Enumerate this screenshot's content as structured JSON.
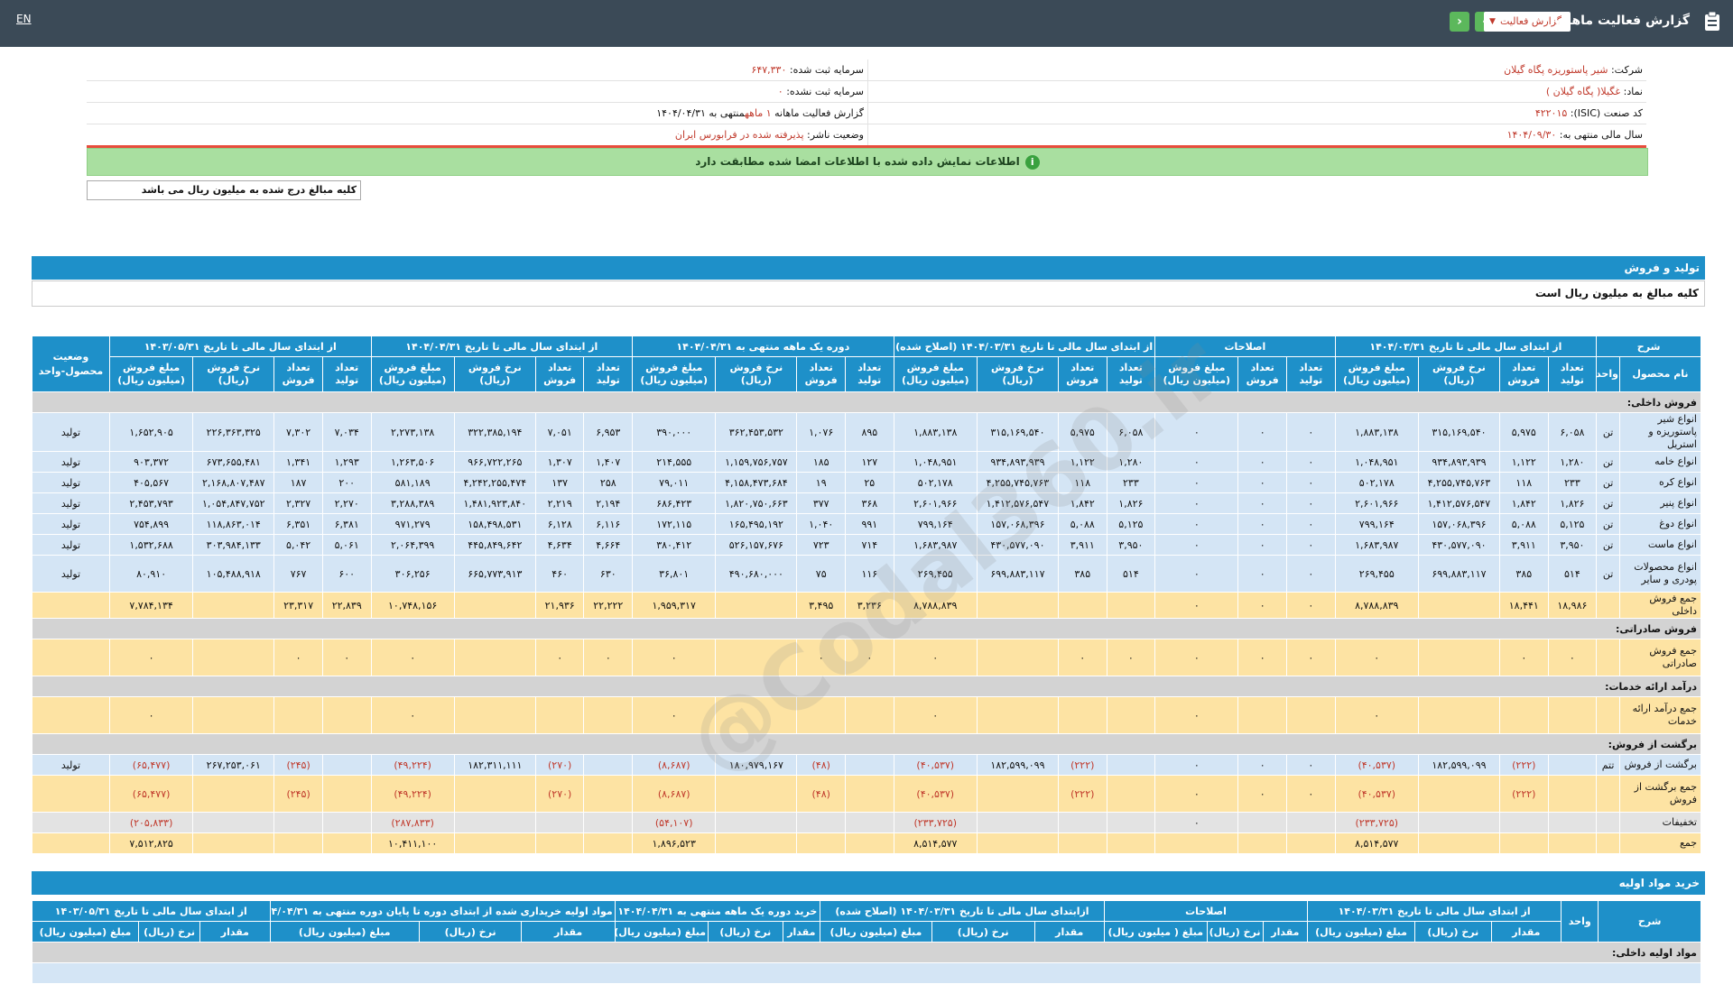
{
  "topbar": {
    "title": "گزارش فعالیت ماهانه",
    "lang": "EN",
    "select_value": "گزارش فعالیت"
  },
  "info": {
    "company_label": "شرکت:",
    "company": "شیر پاستوریزه پگاه گیلان",
    "capital_reg_label": "سرمایه ثبت شده:",
    "capital_reg": "۶۴۷,۳۳۰",
    "symbol_label": "نماد:",
    "symbol": "غگیلا( پگاه گیلان )",
    "capital_unreg_label": "سرمایه ثبت نشده:",
    "capital_unreg": "۰",
    "isic_label": "کد صنعت (ISIC):",
    "isic": "۴۲۲۰۱۵",
    "report_label": "گزارش فعالیت ماهانه",
    "report_value": "۱ ماهه",
    "report_suffix": "منتهی به ۱۴۰۴/۰۴/۳۱",
    "fy_label": "سال مالی منتهی به:",
    "fy": "۱۴۰۴/۰۹/۳۰",
    "status_label": "وضعیت ناشر:",
    "status": "پذیرفته شده در فرابورس ایران"
  },
  "green_msg": "اطلاعات نمایش داده شده با اطلاعات امضا شده مطابقت دارد",
  "note": "کلیه مبالغ درج شده به میلیون ریال می باشد",
  "watermark": "@Codal360.ir",
  "section1": {
    "title": "تولید و فروش",
    "subtitle": "کلیه مبالغ به میلیون ریال است",
    "groups": [
      "شرح",
      "از ابتدای سال مالی تا تاریخ ۱۴۰۴/۰۳/۳۱",
      "اصلاحات",
      "از ابتدای سال مالی تا تاریخ ۱۴۰۴/۰۳/۳۱ (اصلاح شده)",
      "دوره یک ماهه منتهی به ۱۴۰۴/۰۴/۳۱",
      "از ابتدای سال مالی تا تاریخ ۱۴۰۴/۰۴/۳۱",
      "از ابتدای سال مالی تا تاریخ ۱۴۰۳/۰۵/۳۱",
      "وضعیت محصول-واحد"
    ],
    "cols": [
      "نام محصول",
      "واحد",
      "تعداد تولید",
      "تعداد فروش",
      "نرخ فروش (ریال)",
      "مبلغ فروش (میلیون ریال)",
      "تعداد تولید",
      "تعداد فروش",
      "مبلغ فروش (میلیون ریال)",
      "تعداد تولید",
      "تعداد فروش",
      "نرخ فروش (ریال)",
      "مبلغ فروش (میلیون ریال)",
      "تعداد تولید",
      "تعداد فروش",
      "نرخ فروش (ریال)",
      "مبلغ فروش (میلیون ریال)",
      "تعداد تولید",
      "تعداد فروش",
      "نرخ فروش (ریال)",
      "مبلغ فروش (میلیون ریال)",
      "تعداد تولید",
      "تعداد فروش",
      "نرخ فروش (ریال)",
      "مبلغ فروش (میلیون ریال)"
    ],
    "rows": [
      {
        "type": "hdr",
        "cells": [
          "فروش داخلی:"
        ]
      },
      {
        "type": "blue",
        "cells": [
          "انواع شیر پاستوریزه و استریل",
          "تن",
          "۶,۰۵۸",
          "۵,۹۷۵",
          "۳۱۵,۱۶۹,۵۴۰",
          "۱,۸۸۳,۱۳۸",
          "۰",
          "۰",
          "۰",
          "۶,۰۵۸",
          "۵,۹۷۵",
          "۳۱۵,۱۶۹,۵۴۰",
          "۱,۸۸۳,۱۳۸",
          "۸۹۵",
          "۱,۰۷۶",
          "۳۶۲,۴۵۳,۵۳۲",
          "۳۹۰,۰۰۰",
          "۶,۹۵۳",
          "۷,۰۵۱",
          "۳۲۲,۳۸۵,۱۹۴",
          "۲,۲۷۳,۱۳۸",
          "۷,۰۳۴",
          "۷,۳۰۲",
          "۲۲۶,۳۶۳,۳۲۵",
          "۱,۶۵۲,۹۰۵",
          "تولید"
        ]
      },
      {
        "type": "blue",
        "cells": [
          "انواع خامه",
          "تن",
          "۱,۲۸۰",
          "۱,۱۲۲",
          "۹۳۴,۸۹۳,۹۳۹",
          "۱,۰۴۸,۹۵۱",
          "۰",
          "۰",
          "۰",
          "۱,۲۸۰",
          "۱,۱۲۲",
          "۹۳۴,۸۹۳,۹۳۹",
          "۱,۰۴۸,۹۵۱",
          "۱۲۷",
          "۱۸۵",
          "۱,۱۵۹,۷۵۶,۷۵۷",
          "۲۱۴,۵۵۵",
          "۱,۴۰۷",
          "۱,۳۰۷",
          "۹۶۶,۷۲۲,۲۶۵",
          "۱,۲۶۳,۵۰۶",
          "۱,۲۹۳",
          "۱,۳۴۱",
          "۶۷۳,۶۵۵,۴۸۱",
          "۹۰۳,۳۷۲",
          "تولید"
        ]
      },
      {
        "type": "blue",
        "cells": [
          "انواع کره",
          "تن",
          "۲۳۳",
          "۱۱۸",
          "۴,۲۵۵,۷۴۵,۷۶۳",
          "۵۰۲,۱۷۸",
          "۰",
          "۰",
          "۰",
          "۲۳۳",
          "۱۱۸",
          "۴,۲۵۵,۷۴۵,۷۶۳",
          "۵۰۲,۱۷۸",
          "۲۵",
          "۱۹",
          "۴,۱۵۸,۴۷۳,۶۸۴",
          "۷۹,۰۱۱",
          "۲۵۸",
          "۱۳۷",
          "۴,۲۴۲,۲۵۵,۴۷۴",
          "۵۸۱,۱۸۹",
          "۲۰۰",
          "۱۸۷",
          "۲,۱۶۸,۸۰۷,۴۸۷",
          "۴۰۵,۵۶۷",
          "تولید"
        ]
      },
      {
        "type": "blue",
        "cells": [
          "انواع پنیر",
          "تن",
          "۱,۸۲۶",
          "۱,۸۴۲",
          "۱,۴۱۲,۵۷۶,۵۴۷",
          "۲,۶۰۱,۹۶۶",
          "۰",
          "۰",
          "۰",
          "۱,۸۲۶",
          "۱,۸۴۲",
          "۱,۴۱۲,۵۷۶,۵۴۷",
          "۲,۶۰۱,۹۶۶",
          "۳۶۸",
          "۳۷۷",
          "۱,۸۲۰,۷۵۰,۶۶۳",
          "۶۸۶,۴۲۳",
          "۲,۱۹۴",
          "۲,۲۱۹",
          "۱,۴۸۱,۹۲۳,۸۴۰",
          "۳,۲۸۸,۳۸۹",
          "۲,۲۷۰",
          "۲,۳۲۷",
          "۱,۰۵۴,۸۴۷,۷۵۲",
          "۲,۴۵۳,۷۹۳",
          "تولید"
        ]
      },
      {
        "type": "blue",
        "cells": [
          "انواع دوغ",
          "تن",
          "۵,۱۲۵",
          "۵,۰۸۸",
          "۱۵۷,۰۶۸,۳۹۶",
          "۷۹۹,۱۶۴",
          "۰",
          "۰",
          "۰",
          "۵,۱۲۵",
          "۵,۰۸۸",
          "۱۵۷,۰۶۸,۳۹۶",
          "۷۹۹,۱۶۴",
          "۹۹۱",
          "۱,۰۴۰",
          "۱۶۵,۴۹۵,۱۹۲",
          "۱۷۲,۱۱۵",
          "۶,۱۱۶",
          "۶,۱۲۸",
          "۱۵۸,۴۹۸,۵۳۱",
          "۹۷۱,۲۷۹",
          "۶,۳۸۱",
          "۶,۳۵۱",
          "۱۱۸,۸۶۳,۰۱۴",
          "۷۵۴,۸۹۹",
          "تولید"
        ]
      },
      {
        "type": "blue",
        "cells": [
          "انواع ماست",
          "تن",
          "۳,۹۵۰",
          "۳,۹۱۱",
          "۴۳۰,۵۷۷,۰۹۰",
          "۱,۶۸۳,۹۸۷",
          "۰",
          "۰",
          "۰",
          "۳,۹۵۰",
          "۳,۹۱۱",
          "۴۳۰,۵۷۷,۰۹۰",
          "۱,۶۸۳,۹۸۷",
          "۷۱۴",
          "۷۲۳",
          "۵۲۶,۱۵۷,۶۷۶",
          "۳۸۰,۴۱۲",
          "۴,۶۶۴",
          "۴,۶۳۴",
          "۴۴۵,۸۴۹,۶۴۲",
          "۲,۰۶۴,۳۹۹",
          "۵,۰۶۱",
          "۵,۰۴۲",
          "۳۰۳,۹۸۴,۱۳۳",
          "۱,۵۳۲,۶۸۸",
          "تولید"
        ]
      },
      {
        "type": "blue",
        "cells": [
          "انواع محصولات پودری و سایر",
          "تن",
          "۵۱۴",
          "۳۸۵",
          "۶۹۹,۸۸۳,۱۱۷",
          "۲۶۹,۴۵۵",
          "۰",
          "۰",
          "۰",
          "۵۱۴",
          "۳۸۵",
          "۶۹۹,۸۸۳,۱۱۷",
          "۲۶۹,۴۵۵",
          "۱۱۶",
          "۷۵",
          "۴۹۰,۶۸۰,۰۰۰",
          "۳۶,۸۰۱",
          "۶۳۰",
          "۴۶۰",
          "۶۶۵,۷۷۳,۹۱۳",
          "۳۰۶,۲۵۶",
          "۶۰۰",
          "۷۶۷",
          "۱۰۵,۴۸۸,۹۱۸",
          "۸۰,۹۱۰",
          "تولید"
        ]
      },
      {
        "type": "yel",
        "cells": [
          "جمع فروش داخلی",
          "",
          "۱۸,۹۸۶",
          "۱۸,۴۴۱",
          "",
          "۸,۷۸۸,۸۳۹",
          "۰",
          "۰",
          "۰",
          "",
          "",
          "",
          "۸,۷۸۸,۸۳۹",
          "۳,۲۳۶",
          "۳,۴۹۵",
          "",
          "۱,۹۵۹,۳۱۷",
          "۲۲,۲۲۲",
          "۲۱,۹۳۶",
          "",
          "۱۰,۷۴۸,۱۵۶",
          "۲۲,۸۳۹",
          "۲۳,۳۱۷",
          "",
          "۷,۷۸۴,۱۳۴",
          ""
        ]
      },
      {
        "type": "hdr",
        "cells": [
          "فروش صادراتی:"
        ]
      },
      {
        "type": "yel2",
        "cells": [
          "جمع فروش صادراتی",
          "",
          "۰",
          "۰",
          "",
          "۰",
          "۰",
          "۰",
          "۰",
          "۰",
          "۰",
          "",
          "۰",
          "۰",
          "۰",
          "",
          "۰",
          "۰",
          "۰",
          "",
          "۰",
          "۰",
          "۰",
          "",
          "۰",
          ""
        ]
      },
      {
        "type": "hdr",
        "cells": [
          "درآمد ارائه خدمات:"
        ]
      },
      {
        "type": "yel2",
        "cells": [
          "جمع درآمد ارائه خدمات",
          "",
          "",
          "",
          "",
          "۰",
          "",
          "",
          "۰",
          "",
          "",
          "",
          "۰",
          "",
          "",
          "",
          "۰",
          "",
          "",
          "",
          "۰",
          "",
          "",
          "",
          "۰",
          ""
        ]
      },
      {
        "type": "hdr",
        "cells": [
          "برگشت از فروش:"
        ]
      },
      {
        "type": "blue",
        "cells": [
          "برگشت از فروش",
          "تتم",
          "",
          "(۲۲۲)",
          "۱۸۲,۵۹۹,۰۹۹",
          "(۴۰,۵۳۷)",
          "۰",
          "۰",
          "۰",
          "",
          "(۲۲۲)",
          "۱۸۲,۵۹۹,۰۹۹",
          "(۴۰,۵۳۷)",
          "",
          "(۴۸)",
          "۱۸۰,۹۷۹,۱۶۷",
          "(۸,۶۸۷)",
          "",
          "(۲۷۰)",
          "۱۸۲,۳۱۱,۱۱۱",
          "(۴۹,۲۲۴)",
          "",
          "(۲۴۵)",
          "۲۶۷,۲۵۳,۰۶۱",
          "(۶۵,۴۷۷)",
          "تولید"
        ]
      },
      {
        "type": "yel2",
        "cells": [
          "جمع برگشت از فروش",
          "",
          "",
          "(۲۲۲)",
          "",
          "(۴۰,۵۳۷)",
          "۰",
          "۰",
          "۰",
          "",
          "(۲۲۲)",
          "",
          "(۴۰,۵۳۷)",
          "",
          "(۴۸)",
          "",
          "(۸,۶۸۷)",
          "",
          "(۲۷۰)",
          "",
          "(۴۹,۲۲۴)",
          "",
          "(۲۴۵)",
          "",
          "(۶۵,۴۷۷)",
          ""
        ]
      },
      {
        "type": "gray",
        "cells": [
          "تخفیفات",
          "",
          "",
          "",
          "",
          "(۲۳۳,۷۲۵)",
          "",
          "",
          "۰",
          "",
          "",
          "",
          "(۲۳۳,۷۲۵)",
          "",
          "",
          "",
          "(۵۴,۱۰۷)",
          "",
          "",
          "",
          "(۲۸۷,۸۳۳)",
          "",
          "",
          "",
          "(۲۰۵,۸۳۳)",
          ""
        ]
      },
      {
        "type": "yel",
        "cells": [
          "جمع",
          "",
          "",
          "",
          "",
          "۸,۵۱۴,۵۷۷",
          "",
          "",
          "",
          "",
          "",
          "",
          "۸,۵۱۴,۵۷۷",
          "",
          "",
          "",
          "۱,۸۹۶,۵۲۳",
          "",
          "",
          "",
          "۱۰,۴۱۱,۱۰۰",
          "",
          "",
          "",
          "۷,۵۱۲,۸۲۵",
          ""
        ]
      }
    ]
  },
  "section2": {
    "title": "خرید مواد اولیه",
    "groups": [
      "شرح",
      "واحد",
      "از ابتدای سال مالی تا تاریخ ۱۴۰۴/۰۳/۳۱",
      "اصلاحات",
      "ازابتدای سال مالی تا تاریخ ۱۴۰۴/۰۳/۳۱ (اصلاح شده)",
      "خرید دوره یک ماهه منتهی به ۱۴۰۴/۰۴/۳۱",
      "مواد اولیه خریداری شده از ابتدای دوره تا پایان دوره منتهی به ۱۴۰۴/۰۴/۳۱",
      "از ابتدای سال مالی تا تاریخ ۱۴۰۳/۰۵/۳۱"
    ],
    "cols": [
      "مقدار",
      "نرخ (ریال)",
      "مبلغ (میلیون ریال)",
      "مقدار",
      "نرخ (ریال)",
      "مبلغ ( میلیون ریال)",
      "مقدار",
      "نرخ (ریال)",
      "مبلغ (میلیون ریال)",
      "مقدار",
      "نرخ (ریال)",
      "مبلغ (میلیون ریال)",
      "مقدار",
      "نرخ (ریال)",
      "مبلغ (میلیون ریال)",
      "مقدار",
      "نرخ (ریال)",
      "مبلغ (میلیون ریال)"
    ],
    "first_row": "مواد اولیه داخلی:"
  }
}
